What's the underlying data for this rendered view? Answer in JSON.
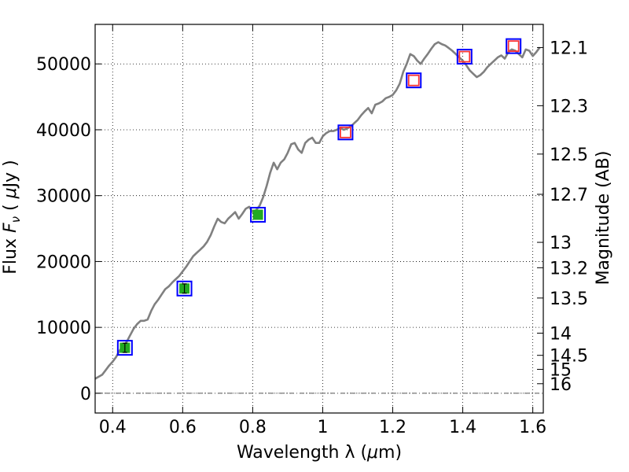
{
  "chart_data": {
    "type": "line",
    "xlabel": "Wavelength  λ (μm)",
    "ylabel": "Flux  F_ν  ( μJy )",
    "y2label": "Magnitude (AB)",
    "xlim": [
      0.35,
      1.63
    ],
    "ylim": [
      -3000,
      56000
    ],
    "grid": "dotted",
    "x_ticks": [
      0.4,
      0.6,
      0.8,
      1.0,
      1.2,
      1.4,
      1.6
    ],
    "x_tick_labels": [
      "0.4",
      "0.6",
      "0.8",
      "1",
      "1.2",
      "1.4",
      "1.6"
    ],
    "y_ticks": [
      0,
      10000,
      20000,
      30000,
      40000,
      50000
    ],
    "y_tick_labels": [
      "0",
      "10000",
      "20000",
      "30000",
      "40000",
      "50000"
    ],
    "mag_ticks": [
      12.1,
      12.3,
      12.5,
      12.7,
      13,
      13.2,
      13.5,
      14,
      14.5,
      15,
      16
    ],
    "mag_tick_labels": [
      "12.1",
      "12.3",
      "12.5",
      "12.7",
      "13",
      "13.2",
      "13.5",
      "14",
      "14.5",
      "15",
      "16"
    ],
    "spectrum": {
      "color": "#808080",
      "x": [
        0.35,
        0.36,
        0.37,
        0.38,
        0.39,
        0.4,
        0.41,
        0.42,
        0.43,
        0.44,
        0.45,
        0.46,
        0.47,
        0.48,
        0.49,
        0.5,
        0.51,
        0.52,
        0.53,
        0.54,
        0.55,
        0.56,
        0.57,
        0.58,
        0.59,
        0.6,
        0.61,
        0.62,
        0.63,
        0.64,
        0.65,
        0.66,
        0.67,
        0.68,
        0.69,
        0.7,
        0.71,
        0.72,
        0.73,
        0.74,
        0.75,
        0.76,
        0.77,
        0.78,
        0.79,
        0.8,
        0.81,
        0.82,
        0.83,
        0.84,
        0.85,
        0.86,
        0.87,
        0.88,
        0.89,
        0.9,
        0.91,
        0.92,
        0.93,
        0.94,
        0.95,
        0.96,
        0.97,
        0.98,
        0.99,
        1.0,
        1.01,
        1.02,
        1.03,
        1.04,
        1.05,
        1.06,
        1.07,
        1.08,
        1.09,
        1.1,
        1.11,
        1.12,
        1.13,
        1.14,
        1.15,
        1.16,
        1.17,
        1.18,
        1.19,
        1.2,
        1.21,
        1.22,
        1.23,
        1.24,
        1.25,
        1.26,
        1.27,
        1.28,
        1.29,
        1.3,
        1.31,
        1.32,
        1.33,
        1.34,
        1.35,
        1.36,
        1.37,
        1.38,
        1.39,
        1.4,
        1.41,
        1.42,
        1.43,
        1.44,
        1.45,
        1.46,
        1.47,
        1.48,
        1.49,
        1.5,
        1.51,
        1.52,
        1.53,
        1.54,
        1.55,
        1.56,
        1.57,
        1.58,
        1.59,
        1.6,
        1.61,
        1.62
      ],
      "y": [
        2200,
        2500,
        2800,
        3500,
        4200,
        4800,
        5500,
        6500,
        7200,
        7800,
        8800,
        9800,
        10500,
        11000,
        11000,
        11200,
        12500,
        13500,
        14200,
        15000,
        15800,
        16200,
        16800,
        17300,
        17800,
        18500,
        19200,
        20000,
        20800,
        21300,
        21800,
        22300,
        23000,
        24000,
        25300,
        26500,
        26000,
        25800,
        26500,
        27000,
        27500,
        26500,
        27200,
        28000,
        28300,
        27500,
        27800,
        28500,
        29800,
        31500,
        33500,
        35000,
        34000,
        35000,
        35500,
        36500,
        37800,
        38000,
        37000,
        36500,
        38000,
        38500,
        38800,
        38000,
        38000,
        39000,
        39500,
        39800,
        39800,
        40000,
        40300,
        40000,
        40200,
        40500,
        41000,
        41500,
        42200,
        42800,
        43300,
        42500,
        43800,
        44000,
        44300,
        44800,
        45000,
        45300,
        46000,
        47000,
        48800,
        50000,
        51500,
        51200,
        50500,
        50000,
        50800,
        51500,
        52300,
        53000,
        53300,
        53000,
        52800,
        52400,
        52000,
        51500,
        51000,
        50500,
        49800,
        49000,
        48500,
        48000,
        48300,
        48800,
        49500,
        50000,
        50500,
        51000,
        51300,
        50800,
        51800,
        52200,
        52000,
        51500,
        51000,
        52200,
        52000,
        51200,
        51800,
        52500
      ]
    },
    "photometry": [
      {
        "x": 0.435,
        "y": 6900,
        "model": "green",
        "error": 700
      },
      {
        "x": 0.605,
        "y": 15900,
        "model": "green",
        "error": 700
      },
      {
        "x": 0.815,
        "y": 27100,
        "model": "green"
      },
      {
        "x": 1.065,
        "y": 39600,
        "model": "red"
      },
      {
        "x": 1.26,
        "y": 47500,
        "model": "red"
      },
      {
        "x": 1.405,
        "y": 51100,
        "model": "red"
      },
      {
        "x": 1.545,
        "y": 52700,
        "model": "red"
      }
    ],
    "colors": {
      "observed_box": "#0000ff",
      "model_green": "#22aa22",
      "model_red": "#ff3333",
      "grid": "#000000",
      "zero_line": "#555555"
    }
  }
}
